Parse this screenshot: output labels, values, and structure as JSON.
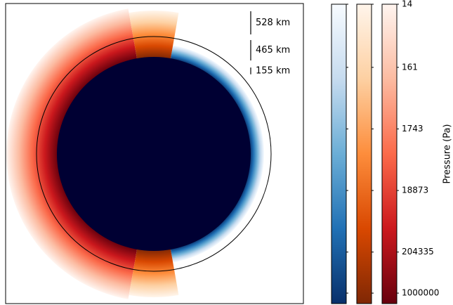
{
  "chart_data": {
    "type": "atmosphere-cross-section",
    "scale_bars": [
      {
        "value": 528,
        "label": "528 km"
      },
      {
        "value": 465,
        "label": "465 km"
      },
      {
        "value": 155,
        "label": "155 km"
      }
    ],
    "planet_color": "#000033",
    "colorbars": [
      {
        "colors": [
          "#f7fbff",
          "#c6dbef",
          "#6baed6",
          "#2171b5",
          "#08306b"
        ]
      },
      {
        "colors": [
          "#fff5eb",
          "#fdd0a2",
          "#fd8d3c",
          "#d94801",
          "#7f2704"
        ]
      },
      {
        "colors": [
          "#fff5f0",
          "#fcbba1",
          "#fb6a4a",
          "#cb181d",
          "#67000d"
        ]
      }
    ],
    "colorbar_label": "Pressure (Pa)",
    "log": true,
    "ylim": [
      14,
      1500000
    ],
    "yticks": [
      14,
      161,
      1743,
      18873,
      204335,
      1000000
    ]
  }
}
